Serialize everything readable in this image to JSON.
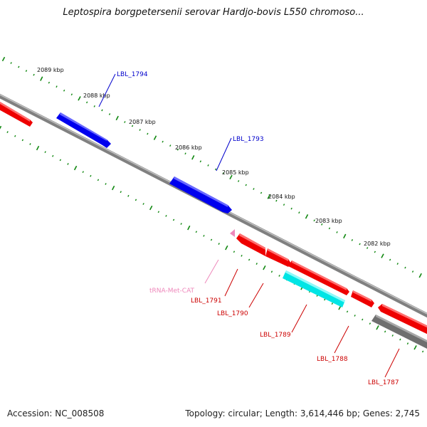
{
  "title": "Leptospira borgpetersenii serovar Hardjo-bovis L550 chromoso...",
  "footer": {
    "accession": "Accession: NC_008508",
    "stats": "Topology: circular; Length: 3,614,446 bp; Genes: 2,745"
  },
  "kbp_labels": [
    "2089 kbp",
    "2088 kbp",
    "2087 kbp",
    "2086 kbp",
    "2085 kbp",
    "2084 kbp",
    "2083 kbp",
    "2082 kbp"
  ],
  "features": {
    "plus_strand": [
      {
        "label": "LBL_1794",
        "color": "#0000dd"
      },
      {
        "label": "LBL_1793",
        "color": "#0000dd"
      }
    ],
    "minus_strand": [
      {
        "label": "LBL_1791",
        "color": "#dd0000"
      },
      {
        "label": "LBL_1790",
        "color": "#dd0000"
      },
      {
        "label": "LBL_1789",
        "color": "#dd0000"
      },
      {
        "label": "LBL_1788",
        "color": "#dd0000"
      },
      {
        "label": "LBL_1787",
        "color": "#dd0000"
      }
    ],
    "other": [
      {
        "label": "tRNA-Met-CAT",
        "color": "#ee88bb"
      }
    ]
  },
  "colors": {
    "backbone": "#808080",
    "ticks": "#118811",
    "gc_feature": "#00e5e5",
    "grey_feature": "#777777"
  }
}
